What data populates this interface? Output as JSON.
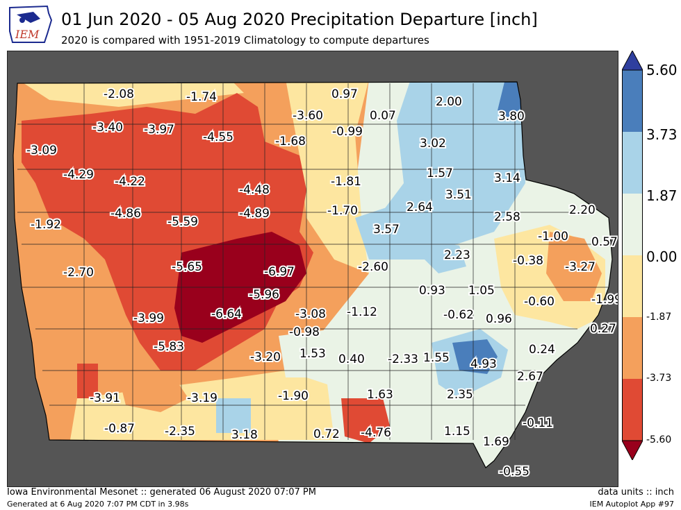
{
  "header": {
    "title": "01 Jun 2020 - 05 Aug 2020 Precipitation Departure [inch]",
    "subtitle": "2020 is compared with 1951-2019 Climatology to compute departures",
    "logo_text": "IEM"
  },
  "colorbar": {
    "ticks": [
      "5.60",
      "3.73",
      "1.87",
      "0.00",
      "-1.87",
      "-3.73",
      "-5.60"
    ],
    "bins": [
      {
        "range": "3.73 to 5.60",
        "color": "#4a7ebb"
      },
      {
        "range": "1.87 to 3.73",
        "color": "#a9d3e8"
      },
      {
        "range": "0.00 to 1.87",
        "color": "#eaf3e6"
      },
      {
        "range": "-1.87 to 0.00",
        "color": "#fde6a0"
      },
      {
        "range": "-3.73 to -1.87",
        "color": "#f4a05c"
      },
      {
        "range": "-5.60 to -3.73",
        "color": "#e04a34"
      }
    ],
    "above_color": "#2f3f9e",
    "below_color": "#99001c"
  },
  "map": {
    "background": "#555555",
    "values": [
      {
        "label": "-2.08"
      },
      {
        "label": "-1.74"
      },
      {
        "label": "0.97"
      },
      {
        "label": "2.00"
      },
      {
        "label": "-3.60"
      },
      {
        "label": "0.07"
      },
      {
        "label": "3.80"
      },
      {
        "label": "-3.40"
      },
      {
        "label": "-3.97"
      },
      {
        "label": "-4.55"
      },
      {
        "label": "-0.99"
      },
      {
        "label": "-1.68"
      },
      {
        "label": "3.02"
      },
      {
        "label": "-3.09"
      },
      {
        "label": "-4.29"
      },
      {
        "label": "-4.22"
      },
      {
        "label": "1.57"
      },
      {
        "label": "3.14"
      },
      {
        "label": "-1.81"
      },
      {
        "label": "-4.48"
      },
      {
        "label": "3.51"
      },
      {
        "label": "2.64"
      },
      {
        "label": "-1.70"
      },
      {
        "label": "-4.86"
      },
      {
        "label": "-4.89"
      },
      {
        "label": "2.58"
      },
      {
        "label": "2.20"
      },
      {
        "label": "-5.59"
      },
      {
        "label": "-1.92"
      },
      {
        "label": "3.57"
      },
      {
        "label": "-1.00"
      },
      {
        "label": "0.57"
      },
      {
        "label": "2.23"
      },
      {
        "label": "-0.38"
      },
      {
        "label": "-5.65"
      },
      {
        "label": "-6.97"
      },
      {
        "label": "-2.60"
      },
      {
        "label": "-3.27"
      },
      {
        "label": "-2.70"
      },
      {
        "label": "0.93"
      },
      {
        "label": "1.05"
      },
      {
        "label": "-5.96"
      },
      {
        "label": "-1.99"
      },
      {
        "label": "-0.60"
      },
      {
        "label": "-3.99"
      },
      {
        "label": "-6.64"
      },
      {
        "label": "-3.08"
      },
      {
        "label": "-1.12"
      },
      {
        "label": "-0.62"
      },
      {
        "label": "0.96"
      },
      {
        "label": "0.27"
      },
      {
        "label": "-0.98"
      },
      {
        "label": "-5.83"
      },
      {
        "label": "0.24"
      },
      {
        "label": "1.53"
      },
      {
        "label": "-3.20"
      },
      {
        "label": "0.40"
      },
      {
        "label": "-2.33"
      },
      {
        "label": "1.55"
      },
      {
        "label": "4.93"
      },
      {
        "label": "2.67"
      },
      {
        "label": "-3.91"
      },
      {
        "label": "-3.19"
      },
      {
        "label": "-1.90"
      },
      {
        "label": "1.63"
      },
      {
        "label": "2.35"
      },
      {
        "label": "-0.11"
      },
      {
        "label": "-0.87"
      },
      {
        "label": "-2.35"
      },
      {
        "label": "3.18"
      },
      {
        "label": "0.72"
      },
      {
        "label": "-4.76"
      },
      {
        "label": "1.15"
      },
      {
        "label": "1.69"
      },
      {
        "label": "-0.55"
      }
    ]
  },
  "footer": {
    "left_line1": "Iowa Environmental Mesonet :: generated 06 August 2020 07:07 PM",
    "left_line2": "Generated at 6 Aug 2020 7:07 PM CDT in 3.98s",
    "right_line1": "data units :: inch",
    "right_line2": "IEM Autoplot App #97"
  }
}
